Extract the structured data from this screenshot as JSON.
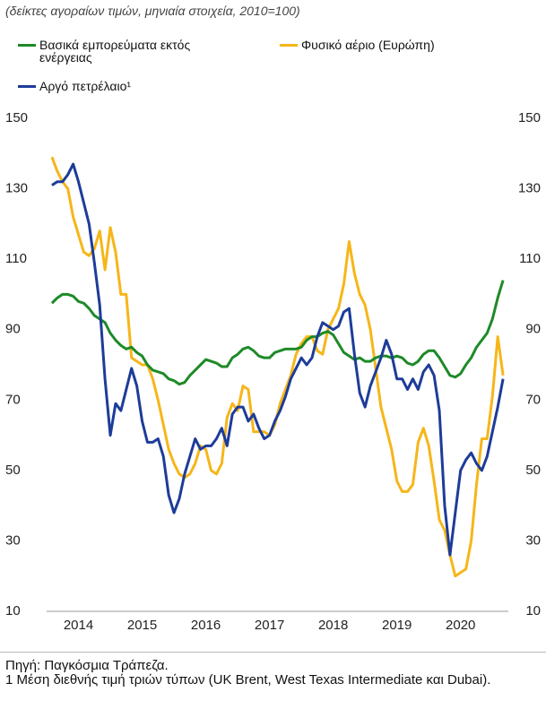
{
  "chart_data": {
    "type": "line",
    "subtitle": "(δείκτες αγοραίων τιμών, μηνιαία στοιχεία, 2010=100)",
    "categories": [
      null,
      null,
      null,
      null,
      null,
      "2014",
      null,
      null,
      null,
      null,
      null,
      null,
      null,
      null,
      null,
      null,
      null,
      "2015",
      null,
      null,
      null,
      null,
      null,
      null,
      null,
      null,
      null,
      null,
      null,
      "2016",
      null,
      null,
      null,
      null,
      null,
      null,
      null,
      null,
      null,
      null,
      null,
      "2017",
      null,
      null,
      null,
      null,
      null,
      null,
      null,
      null,
      null,
      null,
      null,
      "2018",
      null,
      null,
      null,
      null,
      null,
      null,
      null,
      null,
      null,
      null,
      null,
      "2019",
      null,
      null,
      null,
      null,
      null,
      null,
      null,
      null,
      null,
      null,
      null,
      "2020",
      null,
      null,
      null,
      null,
      null,
      null,
      null,
      null
    ],
    "series": [
      {
        "name": "Βασικά εμπορεύματα εκτός ενέργειας",
        "color": "#1e8a28",
        "values": [
          97.5,
          99,
          100,
          100,
          99.5,
          98,
          97.5,
          96,
          94,
          93,
          92,
          89,
          87,
          85.5,
          84.5,
          85,
          83.5,
          82.5,
          80,
          78.5,
          78,
          77.5,
          76,
          75.5,
          74.5,
          75,
          77,
          78.5,
          80,
          81.5,
          81,
          80.5,
          79.5,
          79.5,
          82,
          83,
          84.5,
          85,
          84,
          82.5,
          82,
          82,
          83.5,
          84,
          84.5,
          84.5,
          84.5,
          85,
          87,
          88,
          88,
          89,
          89.5,
          88.5,
          86,
          83.5,
          82.5,
          81.5,
          82,
          81,
          81,
          82,
          82.5,
          82.5,
          82,
          82.5,
          82,
          80.5,
          80,
          81,
          83,
          84,
          84,
          82,
          79.5,
          77,
          76.5,
          77.5,
          80,
          82,
          85,
          87,
          89,
          93,
          99,
          104
        ]
      },
      {
        "name": "Φυσικό αέριο (Ευρώπη)",
        "color": "#f6b619",
        "values": [
          139,
          135,
          132,
          130,
          122,
          117,
          112,
          111,
          113,
          118,
          107,
          119,
          112,
          100,
          100,
          82,
          81,
          80,
          80,
          76,
          70,
          63,
          56,
          52,
          49,
          48,
          49,
          52,
          57,
          56,
          50,
          49,
          52,
          65,
          69,
          67,
          74,
          73,
          61,
          61,
          61,
          60,
          63,
          69,
          73,
          77,
          83,
          86,
          88,
          88,
          84,
          83,
          90,
          93,
          96,
          103,
          115,
          106,
          100,
          97,
          90,
          79,
          68,
          62,
          56,
          47,
          44,
          44,
          46,
          58,
          62,
          57,
          47,
          36,
          33,
          26,
          20,
          21,
          22,
          30,
          46,
          59,
          59,
          71,
          88,
          77
        ]
      },
      {
        "name": "Αργό πετρέλαιο¹",
        "color": "#1d3c99",
        "values": [
          131,
          132,
          132,
          134,
          137,
          132,
          126,
          120,
          109,
          97,
          76,
          60,
          69,
          67,
          73,
          79,
          74,
          64,
          58,
          58,
          59,
          54,
          43,
          38,
          42,
          49,
          54,
          59,
          56,
          57,
          57,
          59,
          62,
          57,
          66,
          68,
          68,
          64,
          66,
          62,
          59,
          60,
          64,
          67,
          71,
          76,
          79,
          82,
          80,
          82,
          88,
          92,
          91,
          90,
          91,
          95,
          96,
          83,
          72,
          68,
          74,
          78,
          82,
          87,
          83,
          76,
          76,
          73,
          76,
          73,
          78,
          80,
          77,
          67,
          40,
          26,
          38,
          50,
          53,
          55,
          52,
          50,
          54,
          61,
          68,
          76
        ]
      }
    ],
    "ylim": [
      10,
      150
    ],
    "yticks": [
      10,
      30,
      50,
      70,
      90,
      110,
      130,
      150
    ],
    "y2lim": [
      10,
      150
    ],
    "y2ticks": [
      10,
      30,
      50,
      70,
      90,
      110,
      130,
      150
    ],
    "source": "Πηγή: Παγκόσμια Τράπεζα.",
    "footnote": "1 Μέση διεθνής τιμή τριών τύπων (UK Brent, West Texas Intermediate και Dubai)."
  }
}
